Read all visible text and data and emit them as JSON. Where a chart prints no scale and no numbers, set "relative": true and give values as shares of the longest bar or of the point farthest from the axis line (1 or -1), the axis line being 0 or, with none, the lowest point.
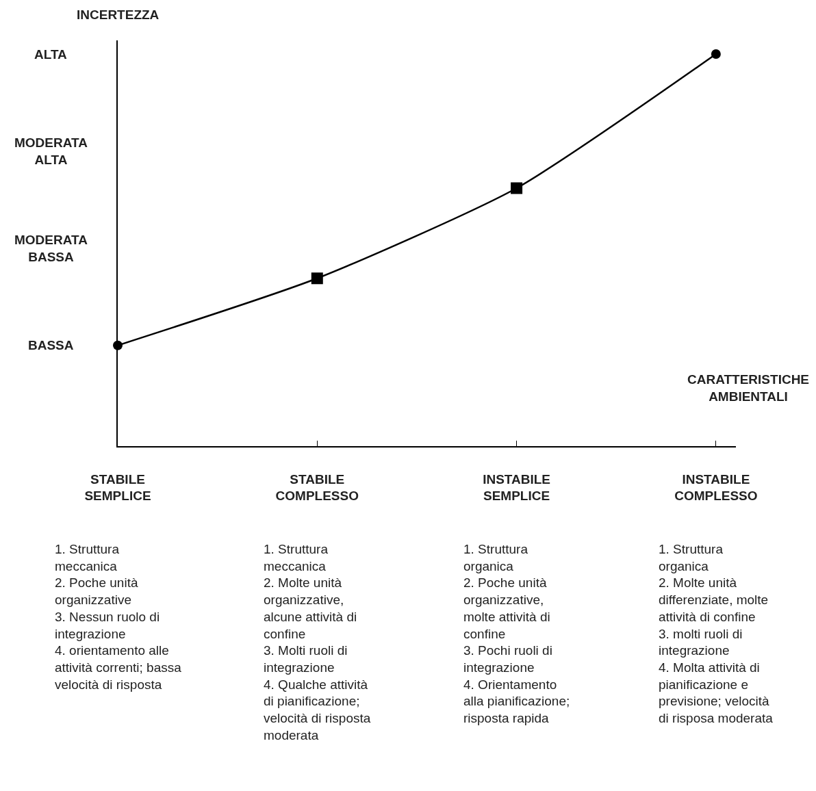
{
  "chart_data": {
    "type": "line",
    "relative": true,
    "ylabel": "INCERTEZZA",
    "xlabel": "CARATTERISTICHE\nAMBIENTALI",
    "categories": [
      "STABILE\nSEMPLICE",
      "STABILE\nCOMPLESSO",
      "INSTABILE\nSEMPLICE",
      "INSTABILE\nCOMPLESSO"
    ],
    "series": [
      {
        "color": "#000000",
        "marker": "none",
        "values": [
          0.257,
          0.428,
          0.658,
          1.0
        ]
      },
      {
        "type": "scatter",
        "color": "#000000",
        "marker": "circle",
        "values": [
          0.257,
          null,
          null,
          1.0
        ]
      },
      {
        "type": "scatter",
        "color": "#000000",
        "marker": "square",
        "values": [
          null,
          0.428,
          0.658,
          null
        ]
      }
    ],
    "annotations": [
      "BASSA",
      "MODERATA\nBASSA",
      "MODERATA\nALTA",
      "ALTA",
      "1. Struttura\nmeccanica\n2. Poche unità\norganizzative\n3. Nessun ruolo di\nintegrazione\n4. orientamento alle\nattività correnti; bassa\nvelocità di risposta",
      "1. Struttura\nmeccanica\n2. Molte unità\norganizzative,\nalcune attività di\nconfine\n3. Molti ruoli di\nintegrazione\n4. Qualche attività\ndi pianificazione;\nvelocità di risposta\nmoderata",
      "1. Struttura\norganica\n2. Poche unità\norganizzative,\nmolte attività di\nconfine\n3. Pochi ruoli di\nintegrazione\n4. Orientamento\nalla pianificazione;\nrisposta rapida",
      "1. Struttura\norganica\n2. Molte unità\ndifferenziate, molte\nattività di confine\n3. molti ruoli di\nintegrazione\n4. Molta attività di\npianificazione e\nprevisione; velocità\ndi risposa moderata"
    ]
  }
}
